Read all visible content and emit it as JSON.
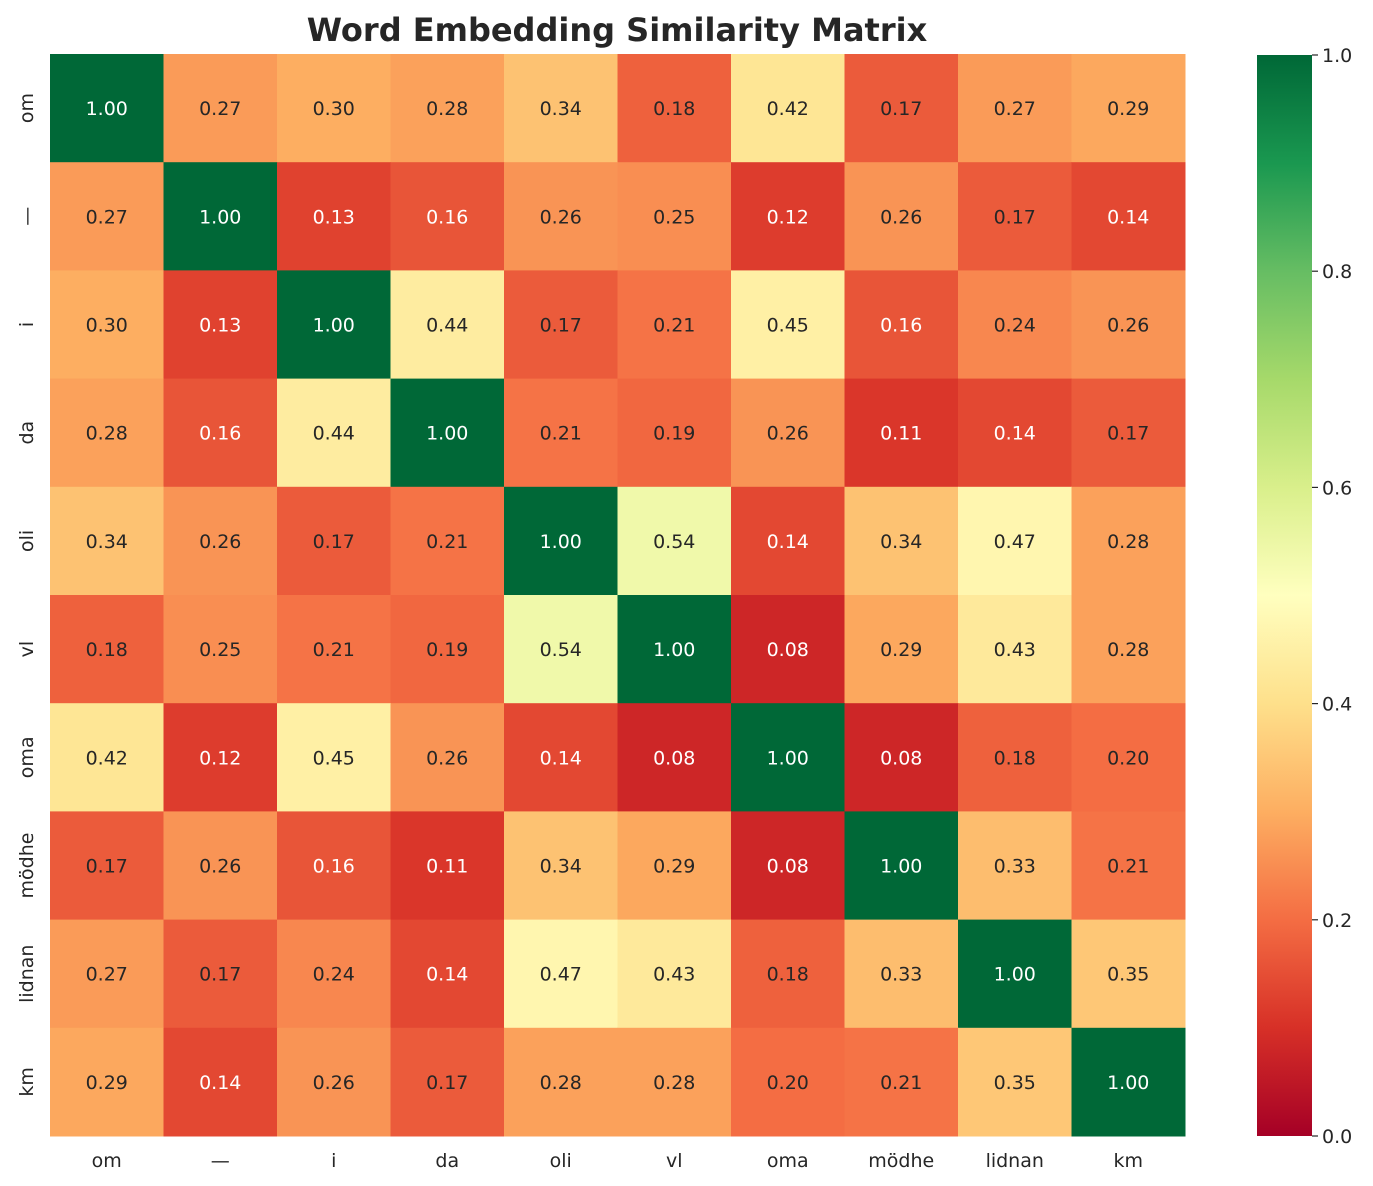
{
  "chart_data": {
    "type": "heatmap",
    "title": "Word Embedding Similarity Matrix",
    "x_labels": [
      "om",
      "—",
      "i",
      "da",
      "oli",
      "vl",
      "oma",
      "mödhe",
      "lidnan",
      "km"
    ],
    "y_labels": [
      "om",
      "—",
      "i",
      "da",
      "oli",
      "vl",
      "oma",
      "mödhe",
      "lidnan",
      "km"
    ],
    "values": [
      [
        1.0,
        0.27,
        0.3,
        0.28,
        0.34,
        0.18,
        0.42,
        0.17,
        0.27,
        0.29
      ],
      [
        0.27,
        1.0,
        0.13,
        0.16,
        0.26,
        0.25,
        0.12,
        0.26,
        0.17,
        0.14
      ],
      [
        0.3,
        0.13,
        1.0,
        0.44,
        0.17,
        0.21,
        0.45,
        0.16,
        0.24,
        0.26
      ],
      [
        0.28,
        0.16,
        0.44,
        1.0,
        0.21,
        0.19,
        0.26,
        0.11,
        0.14,
        0.17
      ],
      [
        0.34,
        0.26,
        0.17,
        0.21,
        1.0,
        0.54,
        0.14,
        0.34,
        0.47,
        0.28
      ],
      [
        0.18,
        0.25,
        0.21,
        0.19,
        0.54,
        1.0,
        0.08,
        0.29,
        0.43,
        0.28
      ],
      [
        0.42,
        0.12,
        0.45,
        0.26,
        0.14,
        0.08,
        1.0,
        0.08,
        0.18,
        0.2
      ],
      [
        0.17,
        0.26,
        0.16,
        0.11,
        0.34,
        0.29,
        0.08,
        1.0,
        0.33,
        0.21
      ],
      [
        0.27,
        0.17,
        0.24,
        0.14,
        0.47,
        0.43,
        0.18,
        0.33,
        1.0,
        0.35
      ],
      [
        0.29,
        0.14,
        0.26,
        0.17,
        0.28,
        0.28,
        0.2,
        0.21,
        0.35,
        1.0
      ]
    ],
    "value_format": "0.00",
    "colormap": "RdYlGn",
    "vmin": 0.0,
    "vmax": 1.0,
    "colorbar_ticks": [
      "0.0",
      "0.2",
      "0.4",
      "0.6",
      "0.8",
      "1.0"
    ],
    "grid": false,
    "colorbar_placement": "right"
  }
}
